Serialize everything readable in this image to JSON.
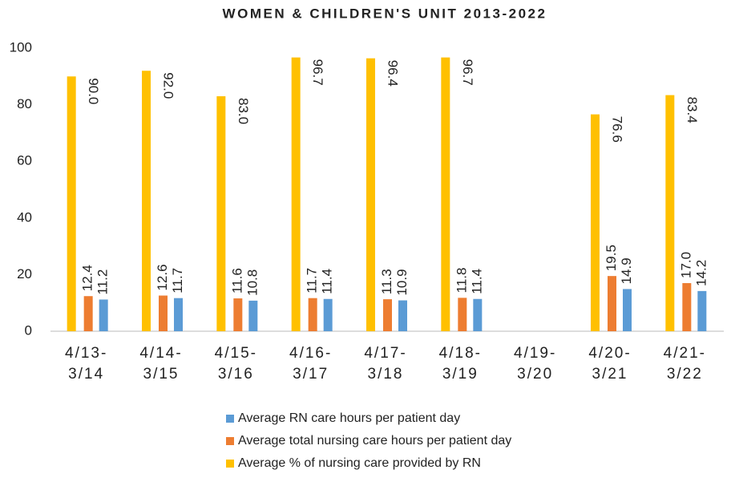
{
  "chart_data": {
    "type": "bar",
    "title": "WOMEN & CHILDREN'S UNIT 2013-2022",
    "categories": [
      "4/13-3/14",
      "4/14-3/15",
      "4/15-3/16",
      "4/16-3/17",
      "4/17-3/18",
      "4/18-3/19",
      "4/19-3/20",
      "4/20-3/21",
      "4/21-3/22"
    ],
    "series": [
      {
        "name": "Average RN care hours per patient day",
        "color": "#5b9bd5",
        "values": [
          11.2,
          11.7,
          10.8,
          11.4,
          10.9,
          11.4,
          null,
          14.9,
          14.2
        ],
        "value_labels": [
          "11.2",
          "11.7",
          "10.8",
          "11.4",
          "10.9",
          "11.4",
          null,
          "14.9",
          "14.2"
        ]
      },
      {
        "name": "Average total nursing care hours per patient day",
        "color": "#ed7d31",
        "values": [
          12.4,
          12.6,
          11.6,
          11.7,
          11.3,
          11.8,
          null,
          19.5,
          17.0
        ],
        "value_labels": [
          "12.4",
          "12.6",
          "11.6",
          "11.7",
          "11.3",
          "11.8",
          null,
          "19.5",
          "17.0"
        ]
      },
      {
        "name": "Average % of nursing care provided by RN",
        "color": "#ffc000",
        "values": [
          90.0,
          92.0,
          83.0,
          96.7,
          96.4,
          96.7,
          null,
          76.6,
          83.4
        ],
        "value_labels": [
          "90.0",
          "92.0",
          "83.0",
          "96.7",
          "96.4",
          "96.7",
          null,
          "76.6",
          "83.4"
        ]
      }
    ],
    "ylim": [
      0,
      100
    ],
    "yticks": [
      0,
      20,
      40,
      60,
      80,
      100
    ],
    "grid": false,
    "legend": "bottom"
  }
}
